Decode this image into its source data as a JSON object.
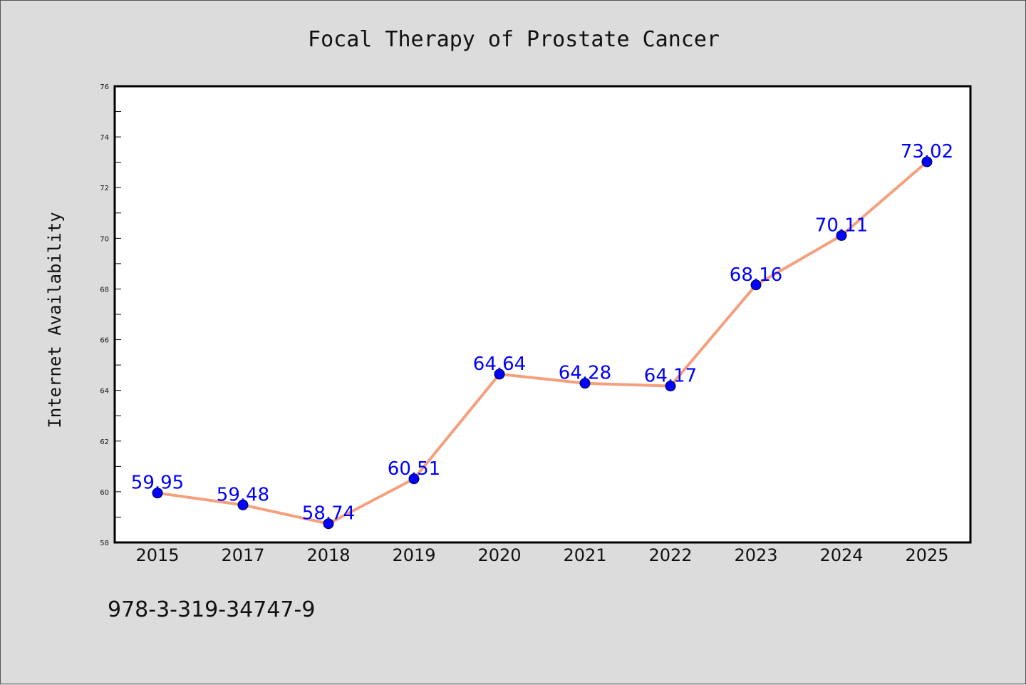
{
  "chart_data": {
    "type": "line",
    "title": "Focal Therapy of Prostate Cancer",
    "xlabel": "",
    "ylabel": "Internet Availability",
    "categories": [
      "2015",
      "2017",
      "2018",
      "2019",
      "2020",
      "2021",
      "2022",
      "2023",
      "2024",
      "2025"
    ],
    "series": [
      {
        "values": [
          59.95,
          59.48,
          58.74,
          60.51,
          64.64,
          64.28,
          64.17,
          68.16,
          70.11,
          73.02
        ]
      }
    ],
    "ylim": [
      58,
      76
    ],
    "yticks": [
      "58",
      "60",
      "62",
      "64",
      "66",
      "68",
      "70",
      "72",
      "74",
      "76"
    ],
    "grid": false,
    "legend": "none",
    "data_labels": [
      "59.95",
      "59.48",
      "58.74",
      "60.51",
      "64.64",
      "64.28",
      "64.17",
      "68.16",
      "70.11",
      "73.02"
    ],
    "colors": {
      "line": "#f4a07e",
      "marker": "#0000ff",
      "label": "#0000ff",
      "background": "#dcdcdc",
      "plot_bg": "#ffffff"
    }
  },
  "footer": {
    "isbn": "978-3-319-34747-9"
  }
}
